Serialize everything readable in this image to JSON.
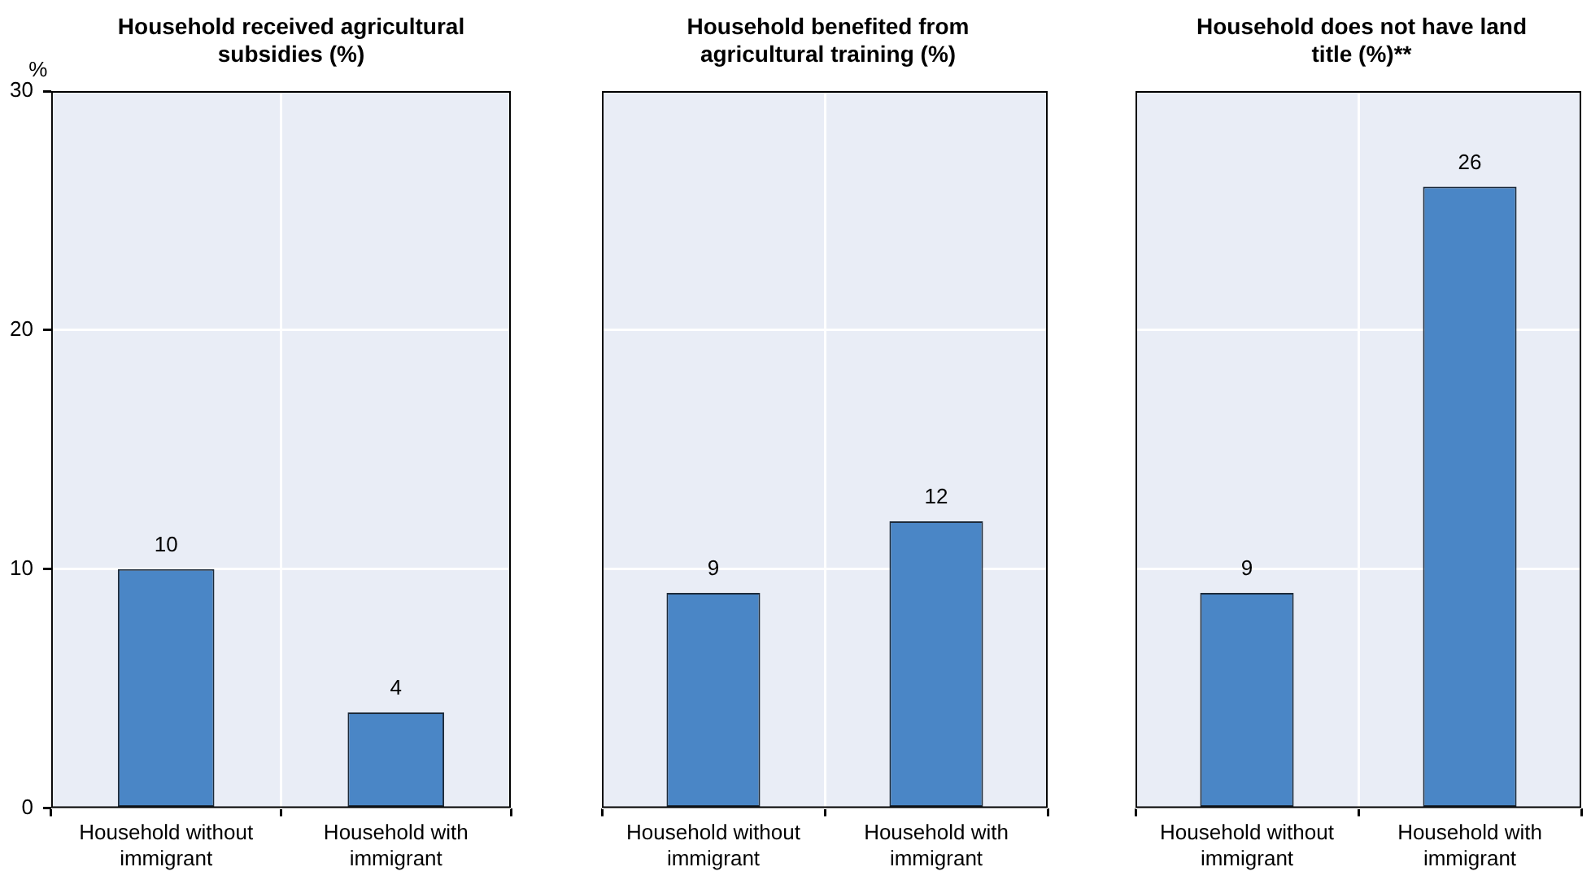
{
  "chart_data": [
    {
      "type": "bar",
      "title": "Household received agricultural subsidies (%)",
      "ylabel": "%",
      "categories": [
        "Household without immigrant",
        "Household with immigrant"
      ],
      "values": [
        10,
        4
      ],
      "color": "#4a86c6",
      "ylim": [
        0,
        30
      ],
      "yticks": [
        0,
        10,
        20,
        30
      ],
      "grid": true,
      "data_labels": true
    },
    {
      "type": "bar",
      "title": "Household benefited from agricultural training (%)",
      "categories": [
        "Household without immigrant",
        "Household with immigrant"
      ],
      "values": [
        9,
        12
      ],
      "color": "#4a86c6",
      "ylim": [
        0,
        30
      ],
      "yticks": [
        0,
        10,
        20,
        30
      ],
      "grid": true,
      "data_labels": true,
      "tick_labels": "x"
    },
    {
      "type": "bar",
      "title": "Household does not have land title (%)**",
      "categories": [
        "Household without immigrant",
        "Household with immigrant"
      ],
      "values": [
        9,
        26
      ],
      "color": "#4a86c6",
      "ylim": [
        0,
        30
      ],
      "yticks": [
        0,
        10,
        20,
        30
      ],
      "grid": true,
      "data_labels": true,
      "tick_labels": "x"
    }
  ]
}
